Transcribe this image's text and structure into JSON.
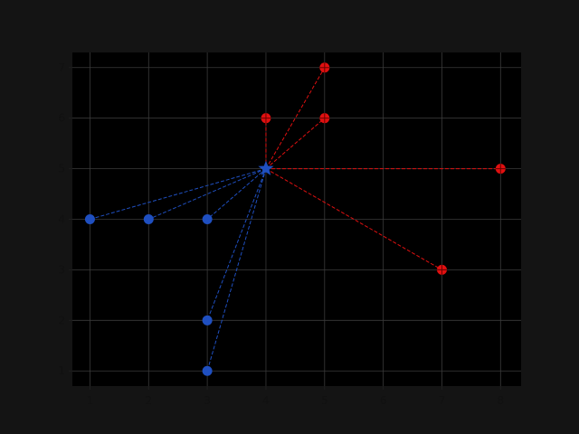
{
  "chart_data": {
    "type": "scatter",
    "title": "",
    "xlabel": "",
    "ylabel": "",
    "xlim": [
      0.7,
      8.35
    ],
    "ylim": [
      0.7,
      7.3
    ],
    "xticks": [
      1,
      2,
      3,
      4,
      5,
      6,
      7,
      8
    ],
    "yticks": [
      1,
      2,
      3,
      4,
      5,
      6,
      7
    ],
    "grid": true,
    "center": {
      "x": 4,
      "y": 5,
      "marker": "star",
      "color": "#1f4fc0"
    },
    "series": [
      {
        "color": "#1f4fc0",
        "marker": "circle",
        "line_style": "dashed",
        "points": [
          {
            "x": 1,
            "y": 4
          },
          {
            "x": 2,
            "y": 4
          },
          {
            "x": 3,
            "y": 4
          },
          {
            "x": 3,
            "y": 2
          },
          {
            "x": 3,
            "y": 1
          }
        ]
      },
      {
        "color": "#e01010",
        "marker": "circle-plus",
        "line_style": "dashed",
        "points": [
          {
            "x": 4,
            "y": 6
          },
          {
            "x": 5,
            "y": 7
          },
          {
            "x": 5,
            "y": 6
          },
          {
            "x": 8,
            "y": 5
          },
          {
            "x": 7,
            "y": 3
          }
        ]
      }
    ]
  }
}
